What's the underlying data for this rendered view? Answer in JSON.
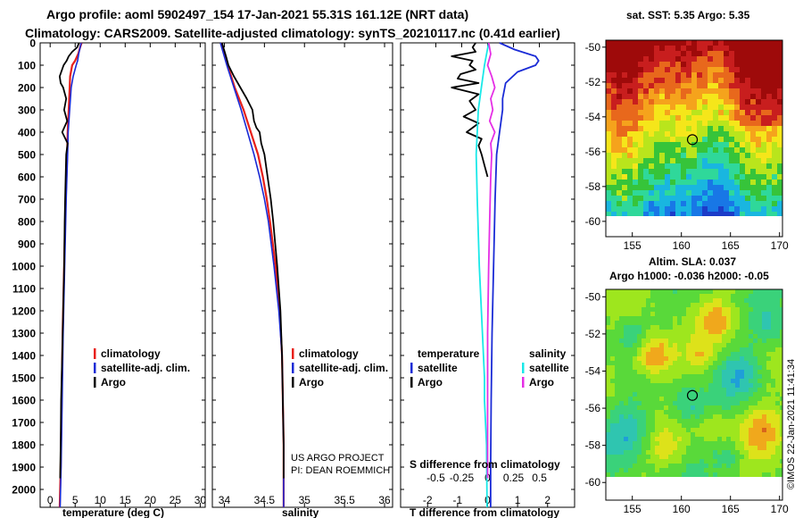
{
  "header": {
    "line1": "Argo profile: aoml 5902497_154 17-Jan-2021 55.31S 161.12E (NRT data)",
    "line2": "Climatology: CARS2009. Satellite-adjusted climatology: synTS_20210117.nc (0.41d earlier)"
  },
  "colors": {
    "climatology": "#e8201a",
    "satellite": "#1a2bd6",
    "argo": "#000000",
    "sal_satellite": "#19e8e8",
    "sal_argo": "#e52ee5"
  },
  "depth_axis": {
    "ticks": [
      "0",
      "100",
      "200",
      "300",
      "400",
      "500",
      "600",
      "700",
      "800",
      "900",
      "1000",
      "1100",
      "1200",
      "1300",
      "1400",
      "1500",
      "1600",
      "1700",
      "1800",
      "1900",
      "2000"
    ]
  },
  "chart_data": [
    {
      "type": "line",
      "name": "temperature",
      "xlabel": "temperature (deg C)",
      "xlim": [
        -2,
        31
      ],
      "ylim": [
        0,
        2080
      ],
      "x_ticks": [
        "0",
        "5",
        "10",
        "15",
        "20",
        "25",
        "30"
      ],
      "legend": [
        "climatology",
        "satellite-adj. clim.",
        "Argo"
      ],
      "series": [
        {
          "name": "climatology",
          "depth": [
            0,
            20,
            50,
            80,
            100,
            150,
            200,
            300,
            400,
            500,
            700,
            1000,
            1300,
            1600,
            1900,
            2080
          ],
          "values": [
            6.3,
            6.0,
            5.6,
            5.0,
            4.4,
            4.0,
            3.9,
            3.7,
            3.5,
            3.4,
            3.1,
            2.8,
            2.5,
            2.3,
            2.1,
            1.9
          ]
        },
        {
          "name": "satellite-adj. clim.",
          "depth": [
            0,
            20,
            50,
            80,
            100,
            150,
            200,
            300,
            400,
            500,
            700,
            1000,
            1300,
            1600,
            1900,
            2080
          ],
          "values": [
            6.2,
            6.0,
            5.7,
            5.5,
            5.2,
            4.6,
            4.2,
            3.9,
            3.6,
            3.5,
            3.2,
            2.9,
            2.6,
            2.4,
            2.2,
            2.0
          ]
        },
        {
          "name": "Argo",
          "depth": [
            0,
            20,
            40,
            60,
            80,
            100,
            150,
            180,
            200,
            250,
            300,
            350,
            400,
            450,
            500,
            600,
            700,
            800,
            1000,
            1200,
            1400,
            1600,
            1800,
            1950
          ],
          "values": [
            5.8,
            5.4,
            4.4,
            3.7,
            3.3,
            2.7,
            1.9,
            2.1,
            2.6,
            3.2,
            2.8,
            3.4,
            2.4,
            3.5,
            3.2,
            3.1,
            3.0,
            2.9,
            2.8,
            2.6,
            2.4,
            2.2,
            2.1,
            2.0
          ]
        }
      ]
    },
    {
      "type": "line",
      "name": "salinity",
      "xlabel": "salinity",
      "xlim": [
        33.85,
        36.1
      ],
      "ylim": [
        0,
        2080
      ],
      "x_ticks": [
        "34",
        "34.5",
        "35",
        "35.5",
        "36"
      ],
      "legend": [
        "climatology",
        "satellite-adj. clim.",
        "Argo"
      ],
      "annotations": [
        "US ARGO PROJECT",
        "PI: DEAN ROEMMICH"
      ],
      "series": [
        {
          "name": "climatology",
          "depth": [
            0,
            100,
            200,
            300,
            400,
            500,
            600,
            700,
            800,
            1000,
            1200,
            1400,
            1600,
            1800,
            2080
          ],
          "values": [
            33.96,
            34.04,
            34.13,
            34.24,
            34.33,
            34.42,
            34.48,
            34.53,
            34.57,
            34.64,
            34.69,
            34.72,
            34.73,
            34.74,
            34.74
          ]
        },
        {
          "name": "satellite-adj. clim.",
          "depth": [
            0,
            100,
            200,
            300,
            400,
            500,
            600,
            700,
            800,
            1000,
            1200,
            1400,
            1600,
            1800,
            2080
          ],
          "values": [
            33.95,
            34.03,
            34.12,
            34.21,
            34.29,
            34.37,
            34.44,
            34.5,
            34.55,
            34.62,
            34.68,
            34.72,
            34.73,
            34.74,
            34.74
          ]
        },
        {
          "name": "Argo",
          "depth": [
            0,
            60,
            100,
            150,
            200,
            250,
            300,
            350,
            380,
            400,
            450,
            500,
            600,
            700,
            800,
            1000,
            1200,
            1400,
            1600,
            1800,
            1950
          ],
          "values": [
            33.97,
            34.02,
            34.05,
            34.12,
            34.2,
            34.28,
            34.35,
            34.37,
            34.4,
            34.44,
            34.46,
            34.5,
            34.54,
            34.58,
            34.61,
            34.66,
            34.7,
            34.72,
            34.73,
            34.74,
            34.74
          ]
        }
      ]
    },
    {
      "type": "line",
      "name": "difference from climatology",
      "xlabel": "T difference from climatology",
      "xlabel_top": "S difference from climatology",
      "xlim": [
        -2.9,
        2.9
      ],
      "ylim": [
        0,
        2080
      ],
      "x_ticks": [
        "-2",
        "-1",
        "0",
        "1",
        "2"
      ],
      "x_ticks_top": [
        "-0.5",
        "-0.25",
        "0",
        "0.25",
        "0.5"
      ],
      "legend_headers": [
        "temperature",
        "salinity"
      ],
      "legend": [
        "satellite",
        "Argo",
        "satellite",
        "Argo"
      ],
      "series": [
        {
          "name": "T satellite",
          "depth": [
            0,
            30,
            60,
            80,
            100,
            130,
            180,
            250,
            300,
            400,
            500,
            700,
            1000,
            1300,
            1600,
            1900,
            2080
          ],
          "values": [
            0.4,
            0.9,
            1.6,
            1.7,
            1.6,
            1.0,
            0.6,
            0.5,
            0.5,
            0.4,
            0.3,
            0.25,
            0.2,
            0.15,
            0.12,
            0.1,
            0.1
          ]
        },
        {
          "name": "T Argo",
          "depth": [
            0,
            20,
            40,
            60,
            80,
            100,
            120,
            140,
            160,
            180,
            200,
            230,
            260,
            300,
            330,
            360,
            400,
            430,
            460,
            500,
            550,
            600
          ],
          "values": [
            -0.4,
            -0.5,
            -0.4,
            -1.2,
            -0.5,
            -0.6,
            -0.4,
            -0.9,
            -1.0,
            -0.3,
            -1.2,
            -0.3,
            -0.6,
            -0.4,
            -0.8,
            -0.3,
            -0.7,
            -0.2,
            -0.3,
            -0.2,
            -0.1,
            0.0
          ]
        },
        {
          "name": "S satellite",
          "depth": [
            0,
            100,
            200,
            300,
            400,
            500,
            700,
            1000,
            1300,
            1500,
            1600,
            1800,
            2080
          ],
          "values": [
            0.01,
            -0.03,
            -0.06,
            -0.09,
            -0.1,
            -0.11,
            -0.1,
            -0.08,
            -0.05,
            -0.03,
            -0.03,
            -0.01,
            -0.005
          ]
        },
        {
          "name": "S Argo",
          "depth": [
            0,
            50,
            100,
            150,
            200,
            250,
            300,
            350,
            400,
            450,
            500,
            600,
            800,
            1000,
            1300,
            1600,
            1950
          ],
          "values": [
            0.01,
            0.03,
            0.0,
            0.04,
            0.07,
            0.03,
            0.05,
            0.02,
            0.07,
            0.03,
            0.04,
            0.03,
            0.02,
            0.01,
            0.0,
            0.0,
            0.0
          ]
        }
      ]
    }
  ],
  "maps": [
    {
      "title": "sat. SST: 5.35 Argo: 5.35",
      "lon_ticks": [
        "155",
        "160",
        "165",
        "170"
      ],
      "lat_ticks": [
        "-50",
        "-52",
        "-54",
        "-56",
        "-58",
        "-60"
      ],
      "lon_range": [
        152.3,
        170.3
      ],
      "lat_range": [
        -59.7,
        -49.6
      ],
      "argo_position": {
        "lon": 161.12,
        "lat": -55.31
      }
    },
    {
      "title": "Altim. SLA: 0.037",
      "subtitle": "Argo h1000: -0.036 h2000: -0.05",
      "lon_ticks": [
        "155",
        "160",
        "165",
        "170"
      ],
      "lat_ticks": [
        "-50",
        "-52",
        "-54",
        "-56",
        "-58",
        "-60"
      ],
      "lon_range": [
        152.3,
        170.3
      ],
      "lat_range": [
        -59.7,
        -49.6
      ],
      "argo_position": {
        "lon": 161.12,
        "lat": -55.31
      }
    }
  ],
  "credit": "©IMOS 22-Jan-2021 11:41:34"
}
